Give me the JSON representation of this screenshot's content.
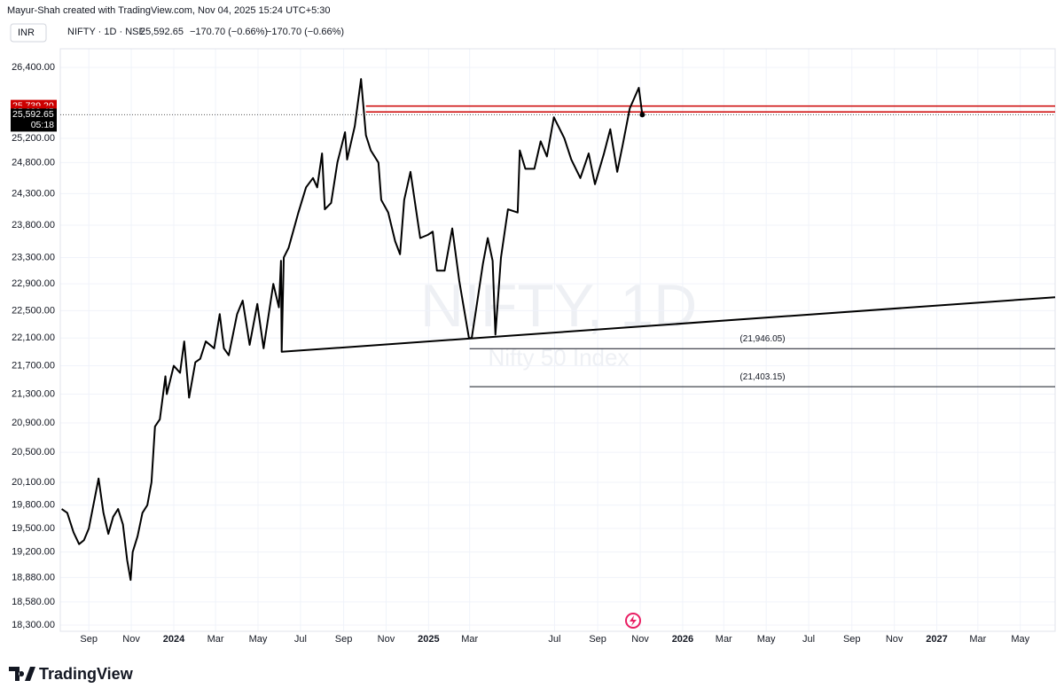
{
  "chart_data": {
    "type": "line",
    "title": "Mayur-Shah created with TradingView.com, Nov 04, 2025 15:24 UTC+5:30",
    "currency": "INR",
    "symbol_info": "NIFTY · 1D · NSE",
    "last": "25,592.65",
    "change": [
      "−170.70 (−0.66%)",
      "−170.70 (−0.66%)"
    ],
    "watermark": "NIFTY, 1D",
    "watermark_subtitle": "Nifty 50 Index",
    "brand": "TradingView",
    "log_scale": true,
    "grid": true,
    "color": "#000000",
    "x": [
      "2023-07-24",
      "2023-08-01",
      "2023-08-10",
      "2023-08-18",
      "2023-08-25",
      "2023-09-01",
      "2023-09-15",
      "2023-09-22",
      "2023-09-29",
      "2023-10-06",
      "2023-10-13",
      "2023-10-20",
      "2023-10-26",
      "2023-10-31",
      "2023-11-03",
      "2023-11-10",
      "2023-11-17",
      "2023-11-24",
      "2023-11-30",
      "2023-12-05",
      "2023-12-12",
      "2023-12-20",
      "2023-12-22",
      "2024-01-01",
      "2024-01-10",
      "2024-01-16",
      "2024-01-23",
      "2024-02-01",
      "2024-02-08",
      "2024-02-16",
      "2024-02-28",
      "2024-03-07",
      "2024-03-13",
      "2024-03-20",
      "2024-04-01",
      "2024-04-09",
      "2024-04-19",
      "2024-04-30",
      "2024-05-09",
      "2024-05-23",
      "2024-05-31",
      "2024-06-03",
      "2024-06-04",
      "2024-06-07",
      "2024-06-14",
      "2024-06-28",
      "2024-07-09",
      "2024-07-19",
      "2024-07-25",
      "2024-08-01",
      "2024-08-05",
      "2024-08-14",
      "2024-08-23",
      "2024-09-03",
      "2024-09-06",
      "2024-09-17",
      "2024-09-26",
      "2024-10-03",
      "2024-10-10",
      "2024-10-21",
      "2024-10-25",
      "2024-11-04",
      "2024-11-14",
      "2024-11-21",
      "2024-11-27",
      "2024-12-06",
      "2024-12-20",
      "2024-12-31",
      "2025-01-07",
      "2025-01-13",
      "2025-01-24",
      "2025-02-04",
      "2025-02-14",
      "2025-02-28",
      "2025-03-04",
      "2025-03-10",
      "2025-03-20",
      "2025-03-27",
      "2025-04-03",
      "2025-04-07",
      "2025-04-15",
      "2025-04-25",
      "2025-05-09",
      "2025-05-12",
      "2025-05-20",
      "2025-06-02",
      "2025-06-11",
      "2025-06-20",
      "2025-06-30",
      "2025-07-15",
      "2025-07-25",
      "2025-08-07",
      "2025-08-19",
      "2025-08-28",
      "2025-09-10",
      "2025-09-19",
      "2025-09-29",
      "2025-10-07",
      "2025-10-17",
      "2025-10-30",
      "2025-11-04"
    ],
    "values": [
      19750,
      19700,
      19450,
      19300,
      19350,
      19500,
      20150,
      19700,
      19430,
      19650,
      19750,
      19550,
      19100,
      18850,
      19200,
      19400,
      19700,
      19800,
      20100,
      20850,
      20950,
      21550,
      21300,
      21700,
      21600,
      22050,
      21250,
      21750,
      21800,
      22050,
      21950,
      22450,
      21950,
      21850,
      22450,
      22650,
      22000,
      22600,
      21950,
      22900,
      22550,
      23250,
      21900,
      23300,
      23450,
      24000,
      24400,
      24550,
      24400,
      24950,
      24050,
      24150,
      24800,
      25300,
      24850,
      25400,
      26200,
      25250,
      25000,
      24800,
      24200,
      24000,
      23550,
      23350,
      24200,
      24650,
      23600,
      23650,
      23700,
      23100,
      23100,
      23750,
      22950,
      22100,
      22100,
      22500,
      23200,
      23600,
      23250,
      22150,
      23300,
      24050,
      24000,
      25000,
      24700,
      24700,
      25150,
      24900,
      25550,
      25200,
      24850,
      24550,
      24950,
      24450,
      24950,
      25350,
      24650,
      25100,
      25700,
      26050,
      25592.65
    ],
    "trendline": {
      "x": [
        "2024-06-04",
        "2027-06-20"
      ],
      "values": [
        21900,
        22700
      ]
    },
    "levels": [
      {
        "value": 25739.2,
        "label": "25,739.20",
        "from": "2024-10-03",
        "color": "#cc0000"
      },
      {
        "value": 25639.45,
        "label": "25,639.45",
        "from": "2024-10-03",
        "color": "#cc0000"
      }
    ],
    "current": {
      "value": 25592.65,
      "label": "25,592.65",
      "countdown": "05:18"
    },
    "support_lines": [
      {
        "value": 21946.05,
        "label": "(21,946.05)",
        "from": "2025-03-01"
      },
      {
        "value": 21403.15,
        "label": "(21,403.15)",
        "from": "2025-03-01"
      }
    ],
    "xlim": [
      "2023-07-22",
      "2027-06-20"
    ],
    "xticks": [
      {
        "value": "2023-09-01",
        "label": "Sep"
      },
      {
        "value": "2023-11-01",
        "label": "Nov"
      },
      {
        "value": "2024-01-01",
        "label": "2024"
      },
      {
        "value": "2024-03-01",
        "label": "Mar"
      },
      {
        "value": "2024-05-01",
        "label": "May"
      },
      {
        "value": "2024-07-01",
        "label": "Jul"
      },
      {
        "value": "2024-09-01",
        "label": "Sep"
      },
      {
        "value": "2024-11-01",
        "label": "Nov"
      },
      {
        "value": "2025-01-01",
        "label": "2025"
      },
      {
        "value": "2025-03-01",
        "label": "Mar"
      },
      {
        "value": "2025-07-01",
        "label": "Jul"
      },
      {
        "value": "2025-09-01",
        "label": "Sep"
      },
      {
        "value": "2025-11-01",
        "label": "Nov"
      },
      {
        "value": "2026-01-01",
        "label": "2026"
      },
      {
        "value": "2026-03-01",
        "label": "Mar"
      },
      {
        "value": "2026-05-01",
        "label": "May"
      },
      {
        "value": "2026-07-01",
        "label": "Jul"
      },
      {
        "value": "2026-09-01",
        "label": "Sep"
      },
      {
        "value": "2026-11-01",
        "label": "Nov"
      },
      {
        "value": "2027-01-01",
        "label": "2027"
      },
      {
        "value": "2027-03-01",
        "label": "Mar"
      },
      {
        "value": "2027-05-01",
        "label": "May"
      }
    ],
    "ylim": [
      18225,
      26727
    ],
    "yticks": [
      {
        "value": 26400,
        "label": "26,400.00"
      },
      {
        "value": 25200,
        "label": "25,200.00"
      },
      {
        "value": 24800,
        "label": "24,800.00"
      },
      {
        "value": 24300,
        "label": "24,300.00"
      },
      {
        "value": 23800,
        "label": "23,800.00"
      },
      {
        "value": 23300,
        "label": "23,300.00"
      },
      {
        "value": 22900,
        "label": "22,900.00"
      },
      {
        "value": 22500,
        "label": "22,500.00"
      },
      {
        "value": 22100,
        "label": "22,100.00"
      },
      {
        "value": 21700,
        "label": "21,700.00"
      },
      {
        "value": 21300,
        "label": "21,300.00"
      },
      {
        "value": 20900,
        "label": "20,900.00"
      },
      {
        "value": 20500,
        "label": "20,500.00"
      },
      {
        "value": 20100,
        "label": "20,100.00"
      },
      {
        "value": 19800,
        "label": "19,800.00"
      },
      {
        "value": 19500,
        "label": "19,500.00"
      },
      {
        "value": 19200,
        "label": "19,200.00"
      },
      {
        "value": 18880,
        "label": "18,880.00"
      },
      {
        "value": 18580,
        "label": "18,580.00"
      },
      {
        "value": 18300,
        "label": "18,300.00"
      }
    ]
  }
}
